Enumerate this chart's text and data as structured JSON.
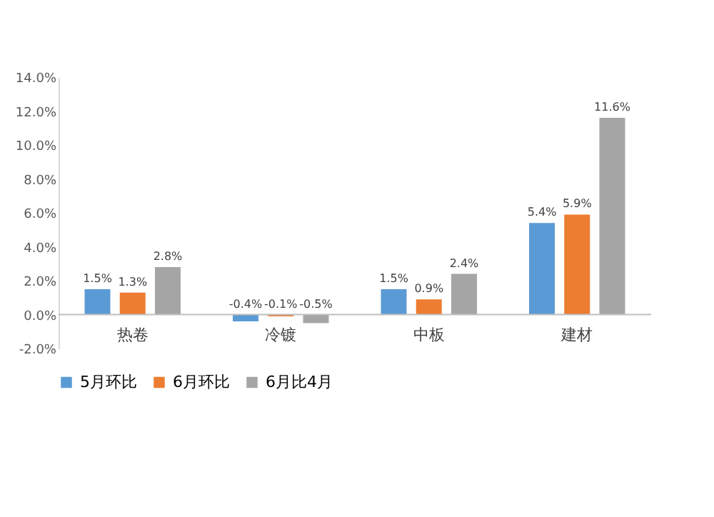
{
  "chart_data": {
    "type": "bar",
    "categories": [
      "热卷",
      "冷镀",
      "中板",
      "建材"
    ],
    "series": [
      {
        "name": "5月环比",
        "color": "#5b9bd5",
        "values": [
          1.5,
          -0.4,
          1.5,
          5.4
        ],
        "value_labels": [
          "1.5%",
          "-0.4%",
          "1.5%",
          "5.4%"
        ]
      },
      {
        "name": "6月环比",
        "color": "#ed7d31",
        "values": [
          1.3,
          -0.1,
          0.9,
          5.9
        ],
        "value_labels": [
          "1.3%",
          "-0.1%",
          "0.9%",
          "5.9%"
        ]
      },
      {
        "name": "6月比4月",
        "color": "#a5a5a5",
        "values": [
          2.8,
          -0.5,
          2.4,
          11.6
        ],
        "value_labels": [
          "2.8%",
          "-0.5%",
          "2.4%",
          "11.6%"
        ]
      }
    ],
    "ylim": [
      -2,
      14
    ],
    "yticks": [
      {
        "value": -2,
        "label": "-2.0%"
      },
      {
        "value": 0,
        "label": "0.0%"
      },
      {
        "value": 2,
        "label": "2.0%"
      },
      {
        "value": 4,
        "label": "4.0%"
      },
      {
        "value": 6,
        "label": "6.0%"
      },
      {
        "value": 8,
        "label": "8.0%"
      },
      {
        "value": 10,
        "label": "10.0%"
      },
      {
        "value": 12,
        "label": "12.0%"
      },
      {
        "value": 14,
        "label": "14.0%"
      }
    ],
    "grid": false,
    "legend": "bottom"
  }
}
